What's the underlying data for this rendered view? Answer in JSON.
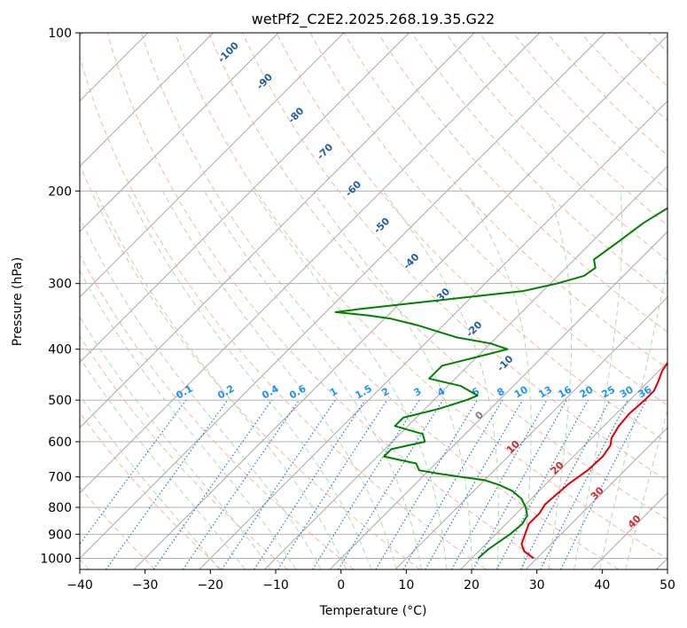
{
  "chart_data": {
    "type": "line",
    "title": "wetPf2_C2E2.2025.268.19.35.G22",
    "xlabel": "Temperature (°C)",
    "ylabel": "Pressure (hPa)",
    "xlim": [
      -40,
      50
    ],
    "ylim": [
      1050,
      100
    ],
    "y_scale": "log",
    "grid": true,
    "x_ticks": [
      -40,
      -30,
      -20,
      -10,
      0,
      10,
      20,
      30,
      40,
      50
    ],
    "y_ticks": [
      100,
      200,
      300,
      400,
      500,
      600,
      700,
      800,
      900,
      1000
    ],
    "skew_reference_pressure": 1000,
    "series": [
      {
        "color": "#e00000",
        "x": [
          29.5,
          27,
          25.5,
          24.5,
          23.5,
          23.5,
          23,
          23.2,
          23.5,
          24.3,
          24.5,
          24,
          23,
          22.3,
          22,
          22.3,
          22.3,
          21.5,
          20.5,
          20,
          19,
          18.5,
          17.5,
          14.5,
          11.5,
          7.5,
          3.5,
          0,
          -1,
          -1,
          -0.5,
          -0.5,
          0
        ],
        "y": [
          1000,
          970,
          940,
          900,
          860,
          820,
          790,
          760,
          720,
          680,
          640,
          610,
          590,
          560,
          530,
          500,
          480,
          460,
          440,
          420,
          400,
          380,
          350,
          300,
          250,
          200,
          170,
          150,
          140,
          130,
          115,
          105,
          100
        ]
      },
      {
        "color": "#008000",
        "x": [
          21,
          21.2,
          22.2,
          22.5,
          22,
          20.5,
          18.5,
          16,
          13,
          10,
          6,
          2,
          -1.5,
          -3,
          -6,
          -9,
          -9,
          -5,
          -6.5,
          -12,
          -12,
          -8,
          -5,
          -4,
          -8,
          -14,
          -14,
          -9,
          -6.5,
          -10,
          -16,
          -20,
          -24,
          -29,
          -33,
          -38.5,
          -35,
          -22,
          -13,
          -9,
          -6,
          -5.5,
          -7,
          -6,
          -5,
          -3,
          -2.5,
          -3.5,
          -2.5,
          -1.5,
          -3,
          -4,
          -3.5,
          -2.5,
          -1.5,
          0
        ],
        "y": [
          1000,
          960,
          900,
          860,
          830,
          800,
          770,
          745,
          725,
          710,
          700,
          690,
          680,
          660,
          650,
          640,
          620,
          600,
          580,
          560,
          540,
          520,
          500,
          490,
          470,
          455,
          430,
          410,
          400,
          390,
          380,
          370,
          360,
          350,
          345,
          340,
          335,
          320,
          310,
          300,
          290,
          280,
          270,
          250,
          230,
          210,
          200,
          190,
          180,
          160,
          150,
          140,
          130,
          120,
          110,
          100
        ]
      }
    ],
    "dry_adiabat_labels": [
      "-100",
      "-90",
      "-80",
      "-70",
      "-60",
      "-50",
      "-40",
      "-30",
      "-20",
      "-10"
    ],
    "moist_adiabat_labels": [
      "0",
      "10",
      "20",
      "30",
      "40"
    ],
    "mixing_ratio_labels": [
      "0.1",
      "0.2",
      "0.4",
      "0.6",
      "1",
      "1.5",
      "2",
      "3",
      "4",
      "6",
      "8",
      "10",
      "13",
      "16",
      "20",
      "25",
      "30",
      "36"
    ],
    "colors": {
      "temperature": "#e00000",
      "dewpoint": "#008000",
      "dry_adiabat": "#f4a582",
      "moist_adiabat": "#a6d6a6",
      "mixing_ratio": "#1f77d4",
      "isotherm": "#808080",
      "dry_adiabat_label": "#1f5f9f",
      "moist_adiabat_label": "#d62728",
      "mixing_ratio_label": "#1e90ff"
    }
  }
}
